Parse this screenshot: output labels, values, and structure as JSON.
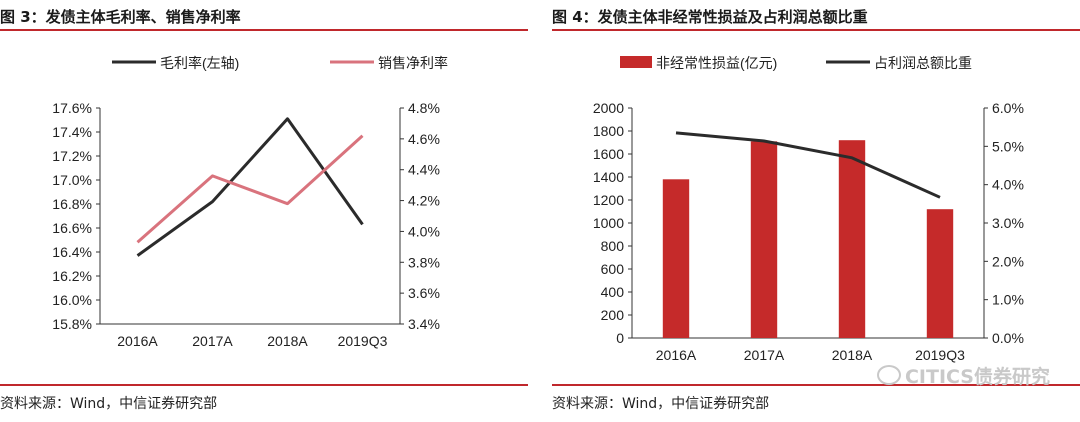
{
  "figures": [
    {
      "title": "图 3：发债主体毛利率、销售净利率",
      "source": "资料来源：Wind，中信证券研究部",
      "chart_data": {
        "type": "line",
        "categories": [
          "2016A",
          "2017A",
          "2018A",
          "2019Q3"
        ],
        "series": [
          {
            "name": "毛利率(左轴)",
            "axis": "left",
            "color": "#2b2b2b",
            "values": [
              16.37,
              16.82,
              17.51,
              16.63
            ]
          },
          {
            "name": "销售净利率",
            "axis": "right",
            "color": "#d9737d",
            "values": [
              3.93,
              4.36,
              4.18,
              4.62
            ]
          }
        ],
        "left_axis": {
          "min": 15.8,
          "max": 17.6,
          "tick_labels": [
            "15.8%",
            "16.0%",
            "16.2%",
            "16.4%",
            "16.6%",
            "16.8%",
            "17.0%",
            "17.2%",
            "17.4%",
            "17.6%"
          ]
        },
        "right_axis": {
          "min": 3.4,
          "max": 4.8,
          "tick_labels": [
            "3.4%",
            "3.6%",
            "3.8%",
            "4.0%",
            "4.2%",
            "4.4%",
            "4.6%",
            "4.8%"
          ]
        },
        "legend_position": "top"
      }
    },
    {
      "title": "图 4：发债主体非经常性损益及占利润总额比重",
      "source": "资料来源：Wind，中信证券研究部",
      "chart_data": {
        "type": "bar+line",
        "categories": [
          "2016A",
          "2017A",
          "2018A",
          "2019Q3"
        ],
        "series": [
          {
            "name": "非经常性损益(亿元)",
            "type": "bar",
            "axis": "left",
            "color": "#c52a2a",
            "values": [
              1380,
              1710,
              1720,
              1120
            ]
          },
          {
            "name": "占利润总额比重",
            "type": "line",
            "axis": "right",
            "color": "#2b2b2b",
            "values": [
              5.35,
              5.14,
              4.7,
              3.67
            ]
          }
        ],
        "left_axis": {
          "min": 0,
          "max": 2000,
          "tick_labels": [
            "0",
            "200",
            "400",
            "600",
            "800",
            "1000",
            "1200",
            "1400",
            "1600",
            "1800",
            "2000"
          ]
        },
        "right_axis": {
          "min": 0,
          "max": 6,
          "tick_labels": [
            "0.0%",
            "1.0%",
            "2.0%",
            "3.0%",
            "4.0%",
            "5.0%",
            "6.0%"
          ]
        },
        "legend_position": "top"
      }
    }
  ],
  "watermark": "CITICS债券研究",
  "colors": {
    "rule": "#c0282c",
    "axis": "#333333"
  }
}
